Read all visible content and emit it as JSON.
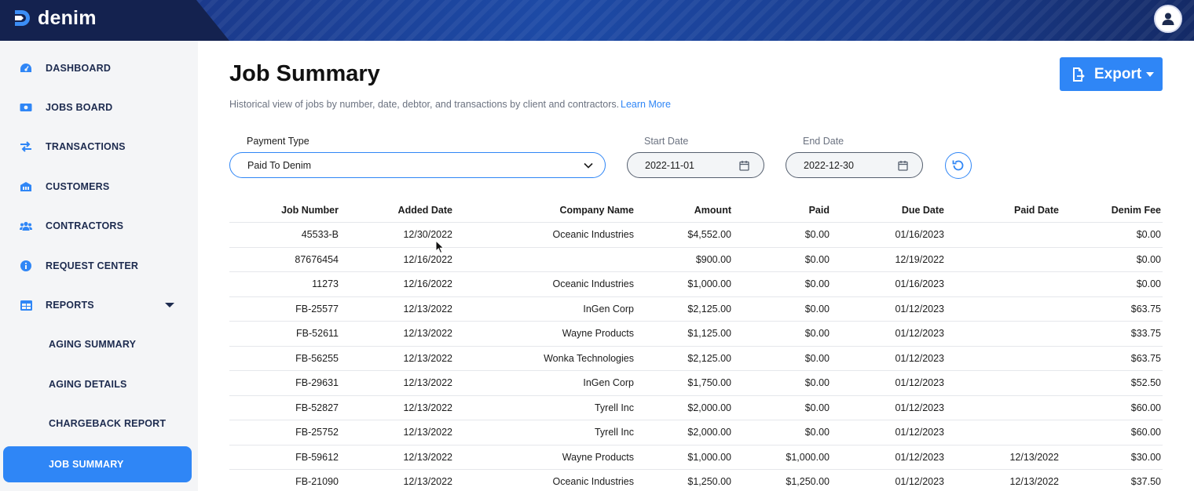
{
  "app": {
    "name": "denim"
  },
  "sidebar": {
    "items": [
      {
        "label": "DASHBOARD",
        "icon": "gauge-icon"
      },
      {
        "label": "JOBS BOARD",
        "icon": "money-icon"
      },
      {
        "label": "TRANSACTIONS",
        "icon": "swap-arrows-icon"
      },
      {
        "label": "CUSTOMERS",
        "icon": "building-icon"
      },
      {
        "label": "CONTRACTORS",
        "icon": "users-icon"
      },
      {
        "label": "REQUEST CENTER",
        "icon": "info-icon"
      },
      {
        "label": "REPORTS",
        "icon": "table-icon",
        "expanded": true
      }
    ],
    "reports": [
      {
        "label": "AGING SUMMARY"
      },
      {
        "label": "AGING DETAILS"
      },
      {
        "label": "CHARGEBACK REPORT"
      },
      {
        "label": "JOB SUMMARY",
        "active": true
      }
    ]
  },
  "page": {
    "title": "Job Summary",
    "subtitle": "Historical view of jobs by number, date, debtor, and transactions by client and contractors.",
    "learn_more": "Learn More",
    "export_label": "Export"
  },
  "filters": {
    "payment_type": {
      "label": "Payment Type",
      "value": "Paid To Denim"
    },
    "start_date": {
      "label": "Start Date",
      "value": "2022-11-01"
    },
    "end_date": {
      "label": "End Date",
      "value": "2022-12-30"
    }
  },
  "table": {
    "columns": [
      "Job Number",
      "Added Date",
      "Company Name",
      "Amount",
      "Paid",
      "Due Date",
      "Paid Date",
      "Denim Fee"
    ],
    "rows": [
      [
        "45533-B",
        "12/30/2022",
        "Oceanic Industries",
        "$4,552.00",
        "$0.00",
        "01/16/2023",
        "",
        "$0.00"
      ],
      [
        "87676454",
        "12/16/2022",
        "",
        "$900.00",
        "$0.00",
        "12/19/2022",
        "",
        "$0.00"
      ],
      [
        "11273",
        "12/16/2022",
        "Oceanic Industries",
        "$1,000.00",
        "$0.00",
        "01/16/2023",
        "",
        "$0.00"
      ],
      [
        "FB-25577",
        "12/13/2022",
        "InGen Corp",
        "$2,125.00",
        "$0.00",
        "01/12/2023",
        "",
        "$63.75"
      ],
      [
        "FB-52611",
        "12/13/2022",
        "Wayne Products",
        "$1,125.00",
        "$0.00",
        "01/12/2023",
        "",
        "$33.75"
      ],
      [
        "FB-56255",
        "12/13/2022",
        "Wonka Technologies",
        "$2,125.00",
        "$0.00",
        "01/12/2023",
        "",
        "$63.75"
      ],
      [
        "FB-29631",
        "12/13/2022",
        "InGen Corp",
        "$1,750.00",
        "$0.00",
        "01/12/2023",
        "",
        "$52.50"
      ],
      [
        "FB-52827",
        "12/13/2022",
        "Tyrell Inc",
        "$2,000.00",
        "$0.00",
        "01/12/2023",
        "",
        "$60.00"
      ],
      [
        "FB-25752",
        "12/13/2022",
        "Tyrell Inc",
        "$2,000.00",
        "$0.00",
        "01/12/2023",
        "",
        "$60.00"
      ],
      [
        "FB-59612",
        "12/13/2022",
        "Wayne Products",
        "$1,000.00",
        "$1,000.00",
        "01/12/2023",
        "12/13/2022",
        "$30.00"
      ],
      [
        "FB-21090",
        "12/13/2022",
        "Oceanic Industries",
        "$1,250.00",
        "$1,250.00",
        "01/12/2023",
        "12/13/2022",
        "$37.50"
      ]
    ]
  },
  "colors": {
    "accent": "#2f86f6",
    "header_bg": "#14224f",
    "nav_text": "#1d2b4f"
  }
}
